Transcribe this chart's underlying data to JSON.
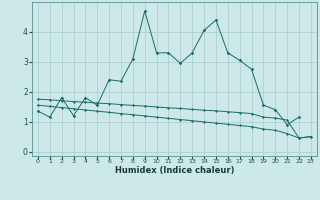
{
  "title": "",
  "xlabel": "Humidex (Indice chaleur)",
  "bg_color": "#cce8e8",
  "grid_color": "#aacccc",
  "line_color": "#1a6b6b",
  "xlim": [
    -0.5,
    23.5
  ],
  "ylim": [
    -0.15,
    5.0
  ],
  "xticks": [
    0,
    1,
    2,
    3,
    4,
    5,
    6,
    7,
    8,
    9,
    10,
    11,
    12,
    13,
    14,
    15,
    16,
    17,
    18,
    19,
    20,
    21,
    22,
    23
  ],
  "yticks": [
    0,
    1,
    2,
    3,
    4
  ],
  "line1_x": [
    0,
    1,
    2,
    3,
    4,
    5,
    6,
    7,
    8,
    9,
    10,
    11,
    12,
    13,
    14,
    15,
    16,
    17,
    18,
    19,
    20,
    21,
    22
  ],
  "line1_y": [
    1.35,
    1.15,
    1.8,
    1.2,
    1.8,
    1.55,
    2.4,
    2.35,
    3.1,
    4.7,
    3.3,
    3.3,
    2.95,
    3.3,
    4.05,
    4.4,
    3.3,
    3.05,
    2.75,
    1.55,
    1.4,
    0.9,
    1.15
  ],
  "line3_x": [
    0,
    1,
    2,
    3,
    4,
    5,
    6,
    7,
    8,
    9,
    10,
    11,
    12,
    13,
    14,
    15,
    16,
    17,
    18,
    19,
    20,
    21,
    22,
    23
  ],
  "line3_y": [
    1.75,
    1.73,
    1.7,
    1.67,
    1.65,
    1.62,
    1.6,
    1.57,
    1.54,
    1.52,
    1.49,
    1.46,
    1.44,
    1.41,
    1.38,
    1.36,
    1.33,
    1.3,
    1.27,
    1.15,
    1.12,
    1.05,
    0.45,
    0.5
  ],
  "line4_x": [
    0,
    1,
    2,
    3,
    4,
    5,
    6,
    7,
    8,
    9,
    10,
    11,
    12,
    13,
    14,
    15,
    16,
    17,
    18,
    19,
    20,
    21,
    22,
    23
  ],
  "line4_y": [
    1.55,
    1.51,
    1.47,
    1.43,
    1.39,
    1.35,
    1.31,
    1.27,
    1.23,
    1.19,
    1.15,
    1.11,
    1.07,
    1.03,
    0.99,
    0.95,
    0.91,
    0.87,
    0.83,
    0.75,
    0.71,
    0.6,
    0.45,
    0.5
  ]
}
